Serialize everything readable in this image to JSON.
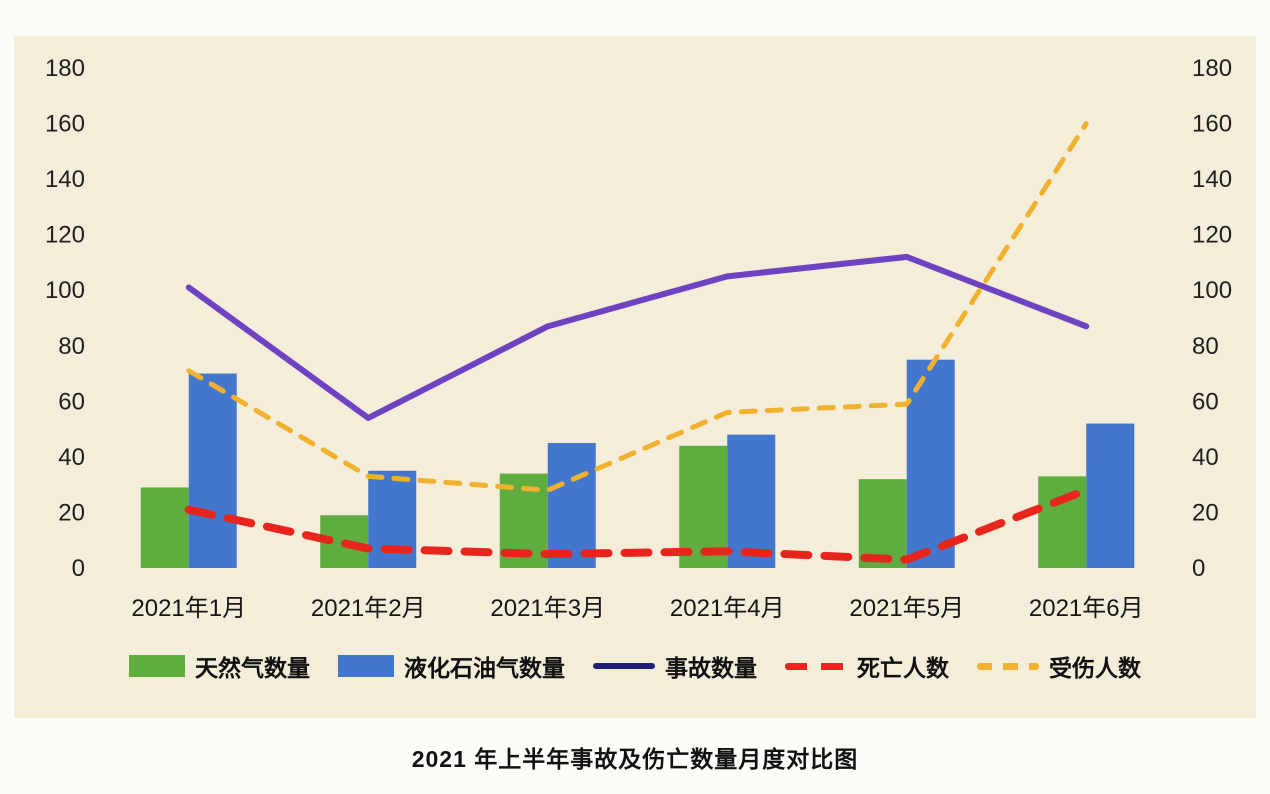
{
  "page": {
    "panel_background": "#f3edda",
    "outer_background": "#fdfcf8"
  },
  "chart_data": {
    "type": "bar",
    "subtype": "combo-bar-line",
    "title": "2021 年上半年事故及伤亡数量月度对比图",
    "categories": [
      "2021年1月",
      "2021年2月",
      "2021年3月",
      "2021年4月",
      "2021年5月",
      "2021年6月"
    ],
    "bar_series": [
      {
        "name": "天然气数量",
        "color": "#5fad3e",
        "values": [
          29,
          19,
          34,
          44,
          32,
          33
        ]
      },
      {
        "name": "液化石油气数量",
        "color": "#4377cd",
        "values": [
          70,
          35,
          45,
          48,
          75,
          52
        ]
      }
    ],
    "line_series": [
      {
        "name": "事故数量",
        "color": "#6f42c1",
        "legend_color": "#1f1f78",
        "style": "solid",
        "width": 6,
        "values": [
          101,
          54,
          87,
          105,
          112,
          87
        ]
      },
      {
        "name": "死亡人数",
        "color": "#e8251d",
        "legend_color": "#e8251d",
        "style": "dashed",
        "width": 8,
        "dash": "24 16",
        "values": [
          21,
          7,
          5,
          6,
          3,
          28
        ]
      },
      {
        "name": "受伤人数",
        "color": "#f0b22e",
        "legend_color": "#f0b22e",
        "style": "dashed",
        "width": 5,
        "dash": "14 12",
        "values": [
          71,
          33,
          28,
          56,
          59,
          160
        ]
      }
    ],
    "y_axis": {
      "min": 0,
      "max": 180,
      "step": 20,
      "ticks": [
        0,
        20,
        40,
        60,
        80,
        100,
        120,
        140,
        160,
        180
      ],
      "sides": "both"
    },
    "grid": false,
    "legend_position": "bottom"
  }
}
